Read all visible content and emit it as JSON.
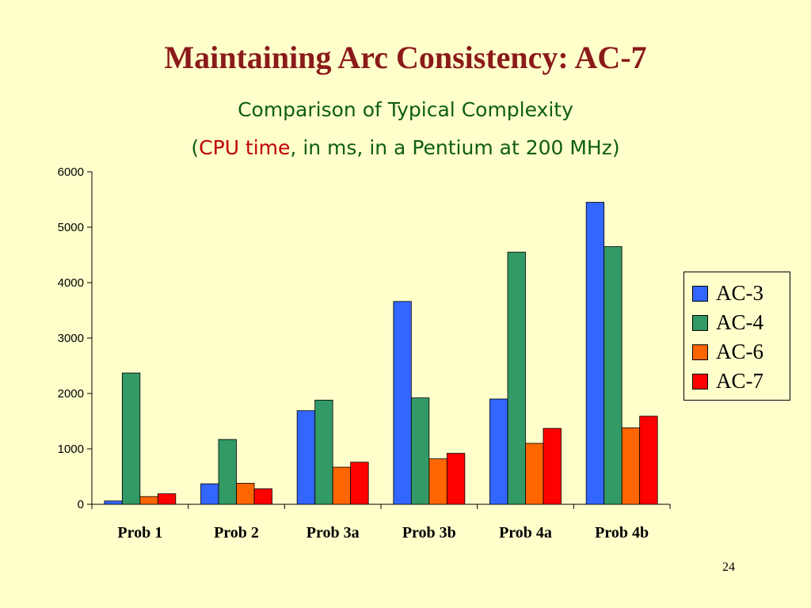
{
  "slide": {
    "title": "Maintaining Arc Consistency: AC-7",
    "page_number": "24"
  },
  "chart_data": {
    "type": "bar",
    "title": "Comparison of Typical Complexity",
    "subtitle": {
      "open": "(",
      "highlight": "CPU time",
      "rest": ", in ms, in a Pentium at 200 MHz)"
    },
    "categories": [
      "Prob 1",
      "Prob 2",
      "Prob 3a",
      "Prob 3b",
      "Prob 4a",
      "Prob 4b"
    ],
    "series": [
      {
        "name": "AC-3",
        "color": "#3366ff",
        "values": [
          60,
          370,
          1690,
          3660,
          1900,
          5450
        ]
      },
      {
        "name": "AC-4",
        "color": "#339966",
        "values": [
          2370,
          1170,
          1880,
          1920,
          4550,
          4650
        ]
      },
      {
        "name": "AC-6",
        "color": "#ff6600",
        "values": [
          140,
          380,
          670,
          820,
          1100,
          1380
        ]
      },
      {
        "name": "AC-7",
        "color": "#ff0000",
        "values": [
          190,
          280,
          760,
          920,
          1370,
          1590
        ]
      }
    ],
    "ylim": [
      0,
      6000
    ],
    "yticks": [
      "0",
      "1000",
      "2000",
      "3000",
      "4000",
      "5000",
      "6000"
    ],
    "legend_position": "right",
    "grid": false
  }
}
